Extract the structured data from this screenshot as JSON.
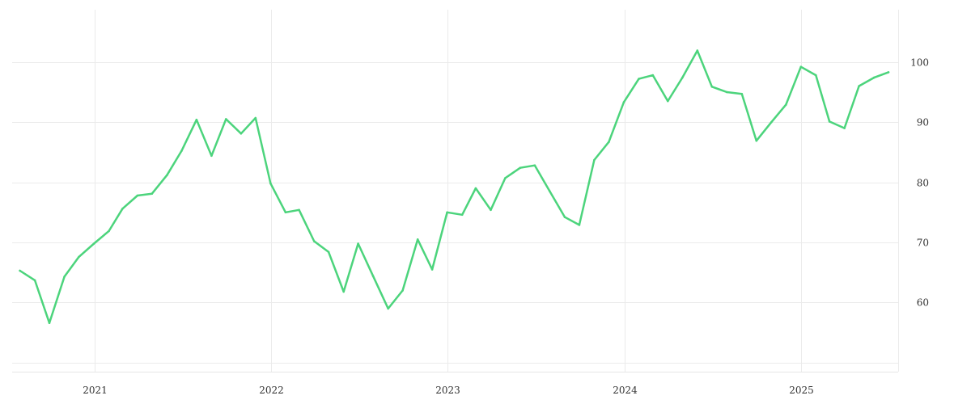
{
  "chart_data": {
    "type": "line",
    "title": "",
    "xlabel": "",
    "ylabel": "",
    "grid": true,
    "legend": "none",
    "y_axis_side": "right",
    "x_ticks": [
      {
        "label": "2021",
        "x": "2021-01-01"
      },
      {
        "label": "2022",
        "x": "2022-01-01"
      },
      {
        "label": "2023",
        "x": "2023-01-01"
      },
      {
        "label": "2024",
        "x": "2024-01-01"
      },
      {
        "label": "2025",
        "x": "2025-01-01"
      }
    ],
    "y_ticks": [
      60,
      70,
      80,
      90,
      100
    ],
    "xlim": [
      "2020-07-15",
      "2025-07-20"
    ],
    "ylim": [
      48.5,
      108.7
    ],
    "series": [
      {
        "color": "#4cd47c",
        "x": [
          "2020-07-31",
          "2020-08-31",
          "2020-09-30",
          "2020-10-31",
          "2020-11-30",
          "2020-12-31",
          "2021-01-31",
          "2021-02-28",
          "2021-03-31",
          "2021-04-30",
          "2021-05-31",
          "2021-06-30",
          "2021-07-31",
          "2021-08-31",
          "2021-09-30",
          "2021-10-31",
          "2021-11-30",
          "2021-12-31",
          "2022-01-31",
          "2022-02-28",
          "2022-03-31",
          "2022-04-30",
          "2022-05-31",
          "2022-06-30",
          "2022-07-31",
          "2022-08-31",
          "2022-09-30",
          "2022-10-31",
          "2022-11-30",
          "2022-12-31",
          "2023-01-31",
          "2023-02-28",
          "2023-03-31",
          "2023-04-30",
          "2023-05-31",
          "2023-06-30",
          "2023-07-31",
          "2023-08-31",
          "2023-09-30",
          "2023-10-31",
          "2023-11-30",
          "2023-12-31",
          "2024-01-31",
          "2024-02-29",
          "2024-03-31",
          "2024-04-30",
          "2024-05-31",
          "2024-06-30",
          "2024-07-31",
          "2024-08-31",
          "2024-09-30",
          "2024-10-31",
          "2024-11-30",
          "2024-12-31",
          "2025-01-31",
          "2025-02-28",
          "2025-03-31",
          "2025-04-30",
          "2025-05-31",
          "2025-06-30"
        ],
        "values": [
          65.3,
          63.7,
          56.6,
          64.3,
          67.6,
          69.8,
          71.9,
          75.6,
          77.8,
          78.1,
          81.2,
          85.2,
          90.4,
          84.4,
          90.5,
          88.1,
          90.7,
          79.8,
          75.0,
          75.4,
          70.2,
          68.4,
          61.8,
          69.8,
          64.4,
          59.0,
          62.0,
          70.5,
          65.5,
          75.0,
          74.6,
          79.0,
          75.4,
          80.7,
          82.4,
          82.8,
          78.5,
          74.2,
          72.9,
          83.7,
          86.7,
          93.3,
          97.2,
          97.8,
          93.5,
          97.4,
          101.9,
          95.9,
          95.0,
          94.7,
          86.9,
          90.0,
          92.9,
          99.2,
          97.8,
          90.1,
          89.0,
          96.0,
          97.4,
          98.3
        ]
      }
    ]
  }
}
